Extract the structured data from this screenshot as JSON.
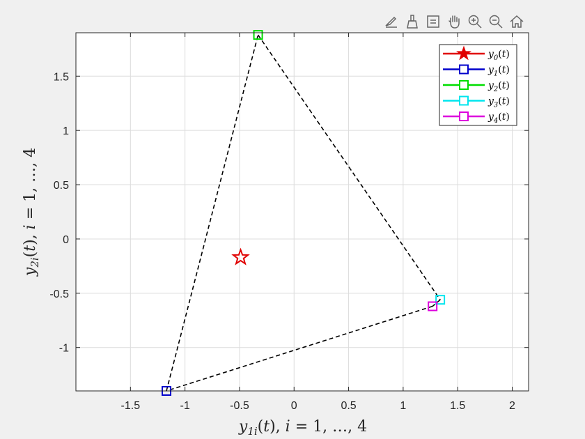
{
  "toolbar": {
    "icons": [
      "edit-plot-icon",
      "brush-icon",
      "data-tips-icon",
      "pan-hand-icon",
      "zoom-in-icon",
      "zoom-out-icon",
      "home-icon"
    ]
  },
  "chart_data": {
    "type": "scatter",
    "title": "",
    "xlabel": "y_{1i}(t), i = 1, …, 4",
    "ylabel": "y_{2i}(t), i = 1, …, 4",
    "xlim": [
      -2,
      2.15
    ],
    "ylim": [
      -1.4,
      1.9
    ],
    "xticks": [
      -1.5,
      -1,
      -0.5,
      0,
      0.5,
      1,
      1.5,
      2
    ],
    "yticks": [
      -1,
      -0.5,
      0,
      0.5,
      1,
      1.5
    ],
    "xtick_labels": [
      "-1.5",
      "-1",
      "-0.5",
      "0",
      "0.5",
      "1",
      "1.5",
      "2"
    ],
    "ytick_labels": [
      "-1",
      "-0.5",
      "0",
      "0.5",
      "1",
      "1.5"
    ],
    "grid": true,
    "legend_position": "top-right",
    "series": [
      {
        "name": "y0(t)",
        "sub": "0",
        "marker": "star",
        "color": "#e00000",
        "x": -0.49,
        "y": -0.17
      },
      {
        "name": "y1(t)",
        "sub": "1",
        "marker": "square",
        "color": "#0000cc",
        "x": -1.17,
        "y": -1.4
      },
      {
        "name": "y2(t)",
        "sub": "2",
        "marker": "square",
        "color": "#00dd00",
        "x": -0.33,
        "y": 1.88
      },
      {
        "name": "y3(t)",
        "sub": "3",
        "marker": "square",
        "color": "#00e5ee",
        "x": 1.34,
        "y": -0.56
      },
      {
        "name": "y4(t)",
        "sub": "4",
        "marker": "square",
        "color": "#dd00dd",
        "x": 1.27,
        "y": -0.62
      }
    ],
    "formation_edges": [
      [
        1,
        2
      ],
      [
        2,
        3
      ],
      [
        3,
        4
      ],
      [
        4,
        1
      ]
    ],
    "edge_style": "dashed black"
  }
}
